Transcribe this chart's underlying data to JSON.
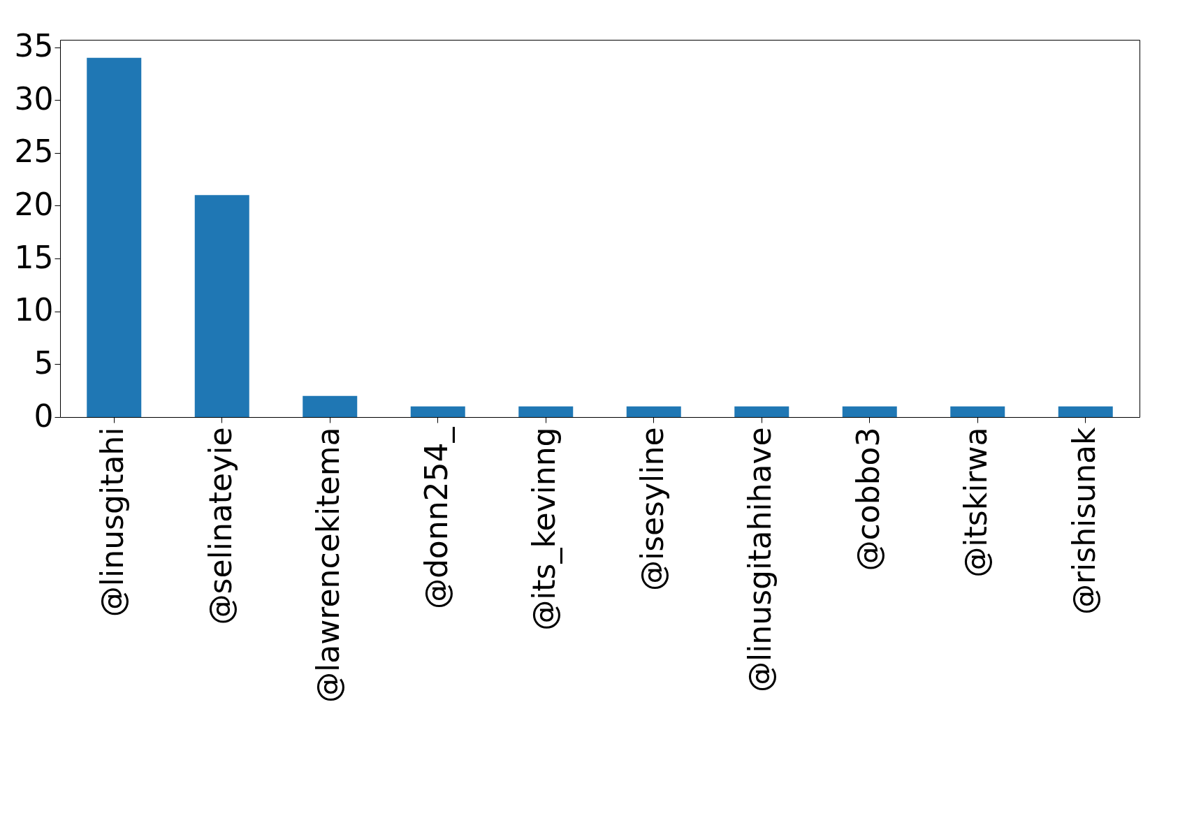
{
  "chart_data": {
    "type": "bar",
    "categories": [
      "@linusgitahi",
      "@selinateyie",
      "@lawrencekitema",
      "@donn254_",
      "@its_kevinng",
      "@isesyline",
      "@linusgitahihave",
      "@cobbo3",
      "@itskirwa",
      "@rishisunak"
    ],
    "values": [
      34,
      21,
      2,
      1,
      1,
      1,
      1,
      1,
      1,
      1
    ],
    "color": "#1f77b4",
    "ylim": [
      0,
      35.7
    ],
    "yticks": [
      0,
      5,
      10,
      15,
      20,
      25,
      30,
      35
    ],
    "grid": false
  }
}
